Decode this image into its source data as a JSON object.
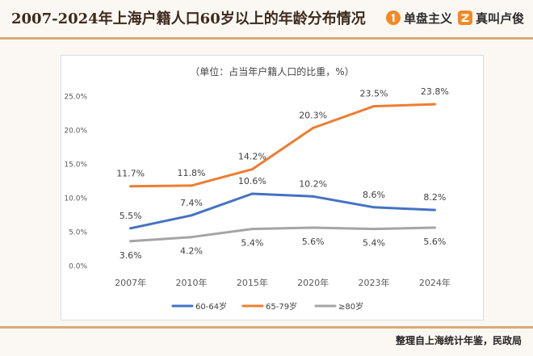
{
  "header": {
    "title": "2007-2024年上海户籍人口60岁以上的年龄分布情况",
    "brand1": {
      "icon": "number-one-logo-icon",
      "label": "单盘主义",
      "color": "#f08a28"
    },
    "brand2": {
      "icon": "z-logo-icon",
      "label": "真叫卢俊",
      "color": "#f08a28"
    }
  },
  "footer": {
    "source": "整理自上海统计年鉴，民政局"
  },
  "colors": {
    "accent_rule": "#d9a977",
    "series_blue": "#4472c4",
    "series_orange": "#ed7d31",
    "series_gray": "#a5a5a5"
  },
  "chart_data": {
    "type": "line",
    "title": "（单位：占当年户籍人口的比重，%）",
    "categories": [
      "2007年",
      "2010年",
      "2015年",
      "2020年",
      "2023年",
      "2024年"
    ],
    "ylim": [
      0,
      25
    ],
    "yticks": [
      "0.0%",
      "5.0%",
      "10.0%",
      "15.0%",
      "20.0%",
      "25.0%"
    ],
    "grid": false,
    "legend_position": "bottom",
    "series": [
      {
        "name": "60-64岁",
        "color": "#4472c4",
        "values": [
          5.5,
          7.4,
          10.6,
          10.2,
          8.6,
          8.2
        ],
        "labels": [
          "5.5%",
          "7.4%",
          "10.6%",
          "10.2%",
          "8.6%",
          "8.2%"
        ]
      },
      {
        "name": "65-79岁",
        "color": "#ed7d31",
        "values": [
          11.7,
          11.8,
          14.2,
          20.3,
          23.5,
          23.8
        ],
        "labels": [
          "11.7%",
          "11.8%",
          "14.2%",
          "20.3%",
          "23.5%",
          "23.8%"
        ]
      },
      {
        "name": "≥80岁",
        "color": "#a5a5a5",
        "values": [
          3.6,
          4.2,
          5.4,
          5.6,
          5.4,
          5.6
        ],
        "labels": [
          "3.6%",
          "4.2%",
          "5.4%",
          "5.6%",
          "5.4%",
          "5.6%"
        ]
      }
    ]
  }
}
